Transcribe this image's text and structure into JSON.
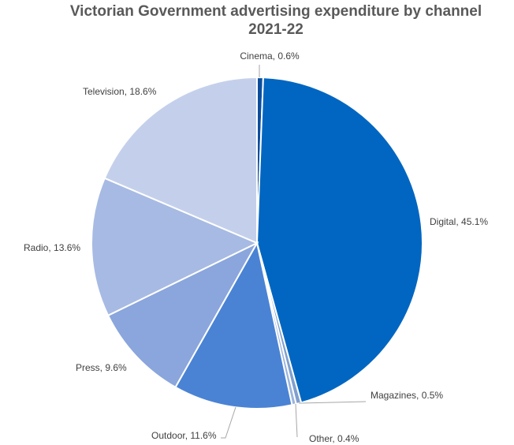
{
  "chart_data": {
    "type": "pie",
    "title": "Victorian Government advertising expenditure by channel",
    "subtitle": "2021-22",
    "start_angle_deg": 0,
    "direction": "clockwise",
    "slices": [
      {
        "name": "Cinema",
        "value": 0.6,
        "label": "Cinema, 0.6%",
        "color": "#0b4e9e"
      },
      {
        "name": "Digital",
        "value": 45.1,
        "label": "Digital, 45.1%",
        "color": "#0066c1"
      },
      {
        "name": "Magazines",
        "value": 0.5,
        "label": "Magazines, 0.5%",
        "color": "#7f9fce"
      },
      {
        "name": "Other",
        "value": 0.4,
        "label": "Other, 0.4%",
        "color": "#9bb4dc"
      },
      {
        "name": "Outdoor",
        "value": 11.6,
        "label": "Outdoor, 11.6%",
        "color": "#4a83d4"
      },
      {
        "name": "Press",
        "value": 9.6,
        "label": "Press, 9.6%",
        "color": "#8aa6dc"
      },
      {
        "name": "Radio",
        "value": 13.6,
        "label": "Radio, 13.6%",
        "color": "#a7bae3"
      },
      {
        "name": "Television",
        "value": 18.6,
        "label": "Television, 18.6%",
        "color": "#c4d0eb"
      }
    ]
  }
}
